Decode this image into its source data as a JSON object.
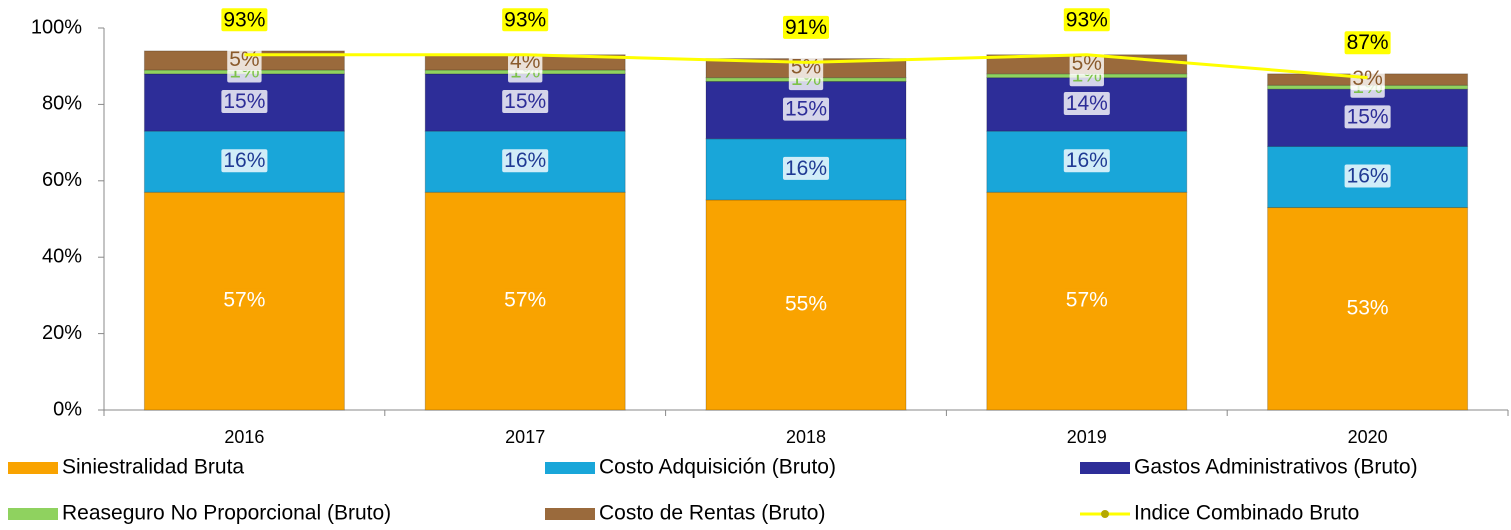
{
  "chart_data": {
    "type": "bar",
    "stacked": true,
    "legend": "bottom",
    "categories": [
      "2016",
      "2017",
      "2018",
      "2019",
      "2020"
    ],
    "ylim": [
      0,
      100
    ],
    "yticks": [
      {
        "value": 0,
        "label": "0%"
      },
      {
        "value": 20,
        "label": "20%"
      },
      {
        "value": 40,
        "label": "40%"
      },
      {
        "value": 60,
        "label": "60%"
      },
      {
        "value": 80,
        "label": "80%"
      },
      {
        "value": 100,
        "label": "100%"
      }
    ],
    "series": [
      {
        "name": "Siniestralidad Bruta",
        "color": "#f9a300",
        "label_color": "#ffffff",
        "values": [
          57,
          57,
          55,
          57,
          53
        ],
        "value_labels": [
          "57%",
          "57%",
          "55%",
          "57%",
          "53%"
        ]
      },
      {
        "name": "Costo Adquisición (Bruto)",
        "color": "#19a6d9",
        "label_color": "#1f3a93",
        "values": [
          16,
          16,
          16,
          16,
          16
        ],
        "value_labels": [
          "16%",
          "16%",
          "16%",
          "16%",
          "16%"
        ]
      },
      {
        "name": "Gastos Administrativos (Bruto)",
        "color": "#2d2d98",
        "label_color": "#2d2d98",
        "values": [
          15,
          15,
          15,
          14,
          15
        ],
        "value_labels": [
          "15%",
          "15%",
          "15%",
          "14%",
          "15%"
        ]
      },
      {
        "name": "Reaseguro No Proporcional (Bruto)",
        "color": "#8fd25f",
        "label_color": "#7cc24a",
        "values": [
          1,
          1,
          1,
          1,
          1
        ],
        "value_labels": [
          "1%",
          "1%",
          "1%",
          "1%",
          "1%"
        ]
      },
      {
        "name": "Costo de Rentas (Bruto)",
        "color": "#9a6a3c",
        "label_color": "#8a5a2c",
        "values": [
          5,
          4,
          5,
          5,
          3
        ],
        "value_labels": [
          "5%",
          "4%",
          "5%",
          "5%",
          "3%"
        ]
      },
      {
        "name": "Indice Combinado Bruto",
        "type": "line",
        "color": "#ffff00",
        "values": [
          93,
          93,
          91,
          93,
          87
        ],
        "value_labels": [
          "93%",
          "93%",
          "91%",
          "93%",
          "87%"
        ]
      }
    ]
  }
}
